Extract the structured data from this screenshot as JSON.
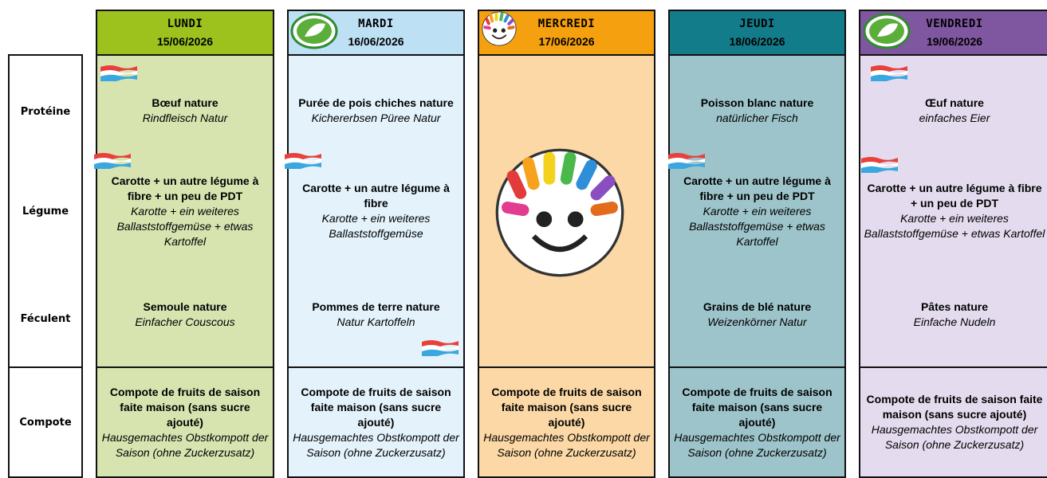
{
  "row_labels": [
    "Protéine",
    "Légume",
    "Féculent",
    "Compote"
  ],
  "days": [
    {
      "name": "LUNDI",
      "date": "15/06/2026",
      "proteine": {
        "fr": "Bœuf nature",
        "de": "Rindfleisch Natur"
      },
      "legume": {
        "fr": "Carotte + un autre légume à fibre + un peu de PDT",
        "de": "Karotte + ein weiteres Ballaststoffgemüse + etwas Kartoffel"
      },
      "feculent": {
        "fr": "Semoule nature",
        "de": "Einfacher Couscous"
      },
      "compote": {
        "fr": "Compote de fruits de saison faite maison (sans sucre ajouté)",
        "de": "Hausgemachtes Obstkompott der Saison (ohne Zuckerzusatz)"
      }
    },
    {
      "name": "MARDI",
      "date": "16/06/2026",
      "proteine": {
        "fr": "Purée de pois chiches nature",
        "de": "Kichererbsen Püree Natur"
      },
      "legume": {
        "fr": "Carotte + un autre légume à fibre",
        "de": "Karotte + ein weiteres Ballaststoffgemüse"
      },
      "feculent": {
        "fr": "Pommes de terre nature",
        "de": "Natur Kartoffeln"
      },
      "compote": {
        "fr": "Compote de fruits de saison faite maison (sans sucre ajouté)",
        "de": "Hausgemachtes Obstkompott der Saison (ohne Zuckerzusatz)"
      }
    },
    {
      "name": "MERCREDI",
      "date": "17/06/2026",
      "compote": {
        "fr": "Compote de fruits de saison faite maison (sans sucre ajouté)",
        "de": "Hausgemachtes Obstkompott der Saison (ohne Zuckerzusatz)"
      }
    },
    {
      "name": "JEUDI",
      "date": "18/06/2026",
      "proteine": {
        "fr": "Poisson blanc nature",
        "de": "natürlicher Fisch"
      },
      "legume": {
        "fr": "Carotte + un autre légume à fibre + un peu de PDT",
        "de": "Karotte + ein weiteres Ballaststoffgemüse + etwas Kartoffel"
      },
      "feculent": {
        "fr": "Grains de blé nature",
        "de": "Weizenkörner Natur"
      },
      "compote": {
        "fr": "Compote de fruits de saison faite maison (sans sucre ajouté)",
        "de": "Hausgemachtes Obstkompott der Saison (ohne Zuckerzusatz)"
      }
    },
    {
      "name": "VENDREDI",
      "date": "19/06/2026",
      "proteine": {
        "fr": "Œuf nature",
        "de": "einfaches Eier"
      },
      "legume": {
        "fr": "Carotte + un autre légume à fibre + un peu de PDT",
        "de": "Karotte + ein weiteres Ballaststoffgemüse + etwas Kartoffel"
      },
      "feculent": {
        "fr": "Pâtes nature",
        "de": "Einfache Nudeln"
      },
      "compote": {
        "fr": "Compote de fruits de saison faite maison (sans sucre ajouté)",
        "de": "Hausgemachtes Obstkompott der Saison (ohne Zuckerzusatz)"
      }
    }
  ]
}
